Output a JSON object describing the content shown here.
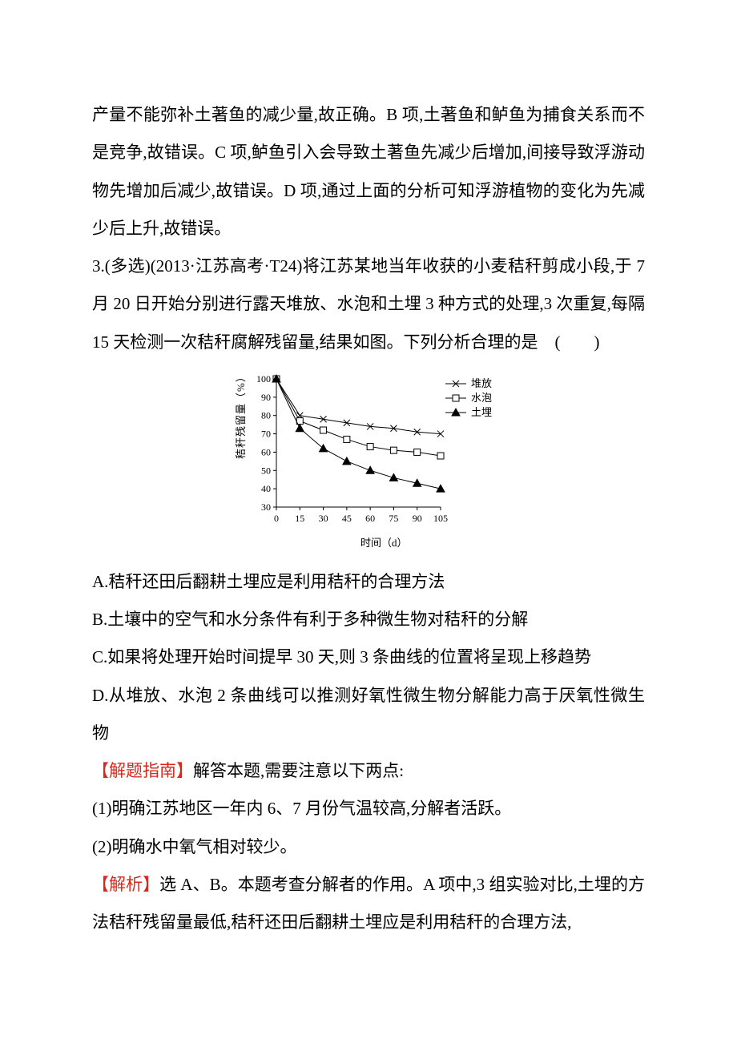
{
  "para_prev": "产量不能弥补土著鱼的减少量,故正确。B 项,土著鱼和鲈鱼为捕食关系而不是竞争,故错误。C 项,鲈鱼引入会导致土著鱼先减少后增加,间接导致浮游动物先增加后减少,故错误。D 项,通过上面的分析可知浮游植物的变化为先减少后上升,故错误。",
  "q3_stem_a": "3.(多选)(2013·江苏高考·T24)将江苏某地当年收获的小麦秸秆剪成小段,于 7 月 20 日开始分别进行露天堆放、水泡和土埋 3 种方式的处理,3 次重复,每隔 15 天检测一次秸秆腐解残留量,结果如图。下列分析合理的是　(　　)",
  "q3_opt_a": "A.秸秆还田后翻耕土埋应是利用秸秆的合理方法",
  "q3_opt_b": "B.土壤中的空气和水分条件有利于多种微生物对秸秆的分解",
  "q3_opt_c": "C.如果将处理开始时间提早 30 天,则 3 条曲线的位置将呈现上移趋势",
  "q3_opt_d": "D.从堆放、水泡 2 条曲线可以推测好氧性微生物分解能力高于厌氧性微生物",
  "hint_label": "【解题指南】",
  "hint_tail": "解答本题,需要注意以下两点:",
  "hint_1": "(1)明确江苏地区一年内 6、7 月份气温较高,分解者活跃。",
  "hint_2": "(2)明确水中氧气相对较少。",
  "ans_label": "【解析】",
  "ans_tail": "选 A、B。本题考查分解者的作用。A 项中,3 组实验对比,土埋的方法秸秆残留量最低,秸秆还田后翻耕土埋应是利用秸秆的合理方法,",
  "chart": {
    "type": "line",
    "x_label": "时间（d）",
    "y_label": "秸秆残留量（%）",
    "x_ticks": [
      0,
      15,
      30,
      45,
      60,
      75,
      90,
      105
    ],
    "y_ticks": [
      30,
      40,
      50,
      60,
      70,
      80,
      90,
      100
    ],
    "axis_color": "#000000",
    "background": "#ffffff",
    "series": [
      {
        "name": "堆放",
        "marker": "x",
        "color": "#000000",
        "values": [
          100,
          80,
          78,
          76,
          74,
          73,
          71,
          70
        ]
      },
      {
        "name": "水泡",
        "marker": "square",
        "color": "#000000",
        "values": [
          100,
          77,
          72,
          67,
          63,
          61,
          60,
          58
        ]
      },
      {
        "name": "土埋",
        "marker": "triangle",
        "color": "#000000",
        "values": [
          100,
          73,
          62,
          55,
          50,
          46,
          43,
          40
        ]
      }
    ],
    "legend": [
      "堆放",
      "水泡",
      "土埋"
    ],
    "legend_markers": [
      "x",
      "square",
      "triangle"
    ]
  }
}
